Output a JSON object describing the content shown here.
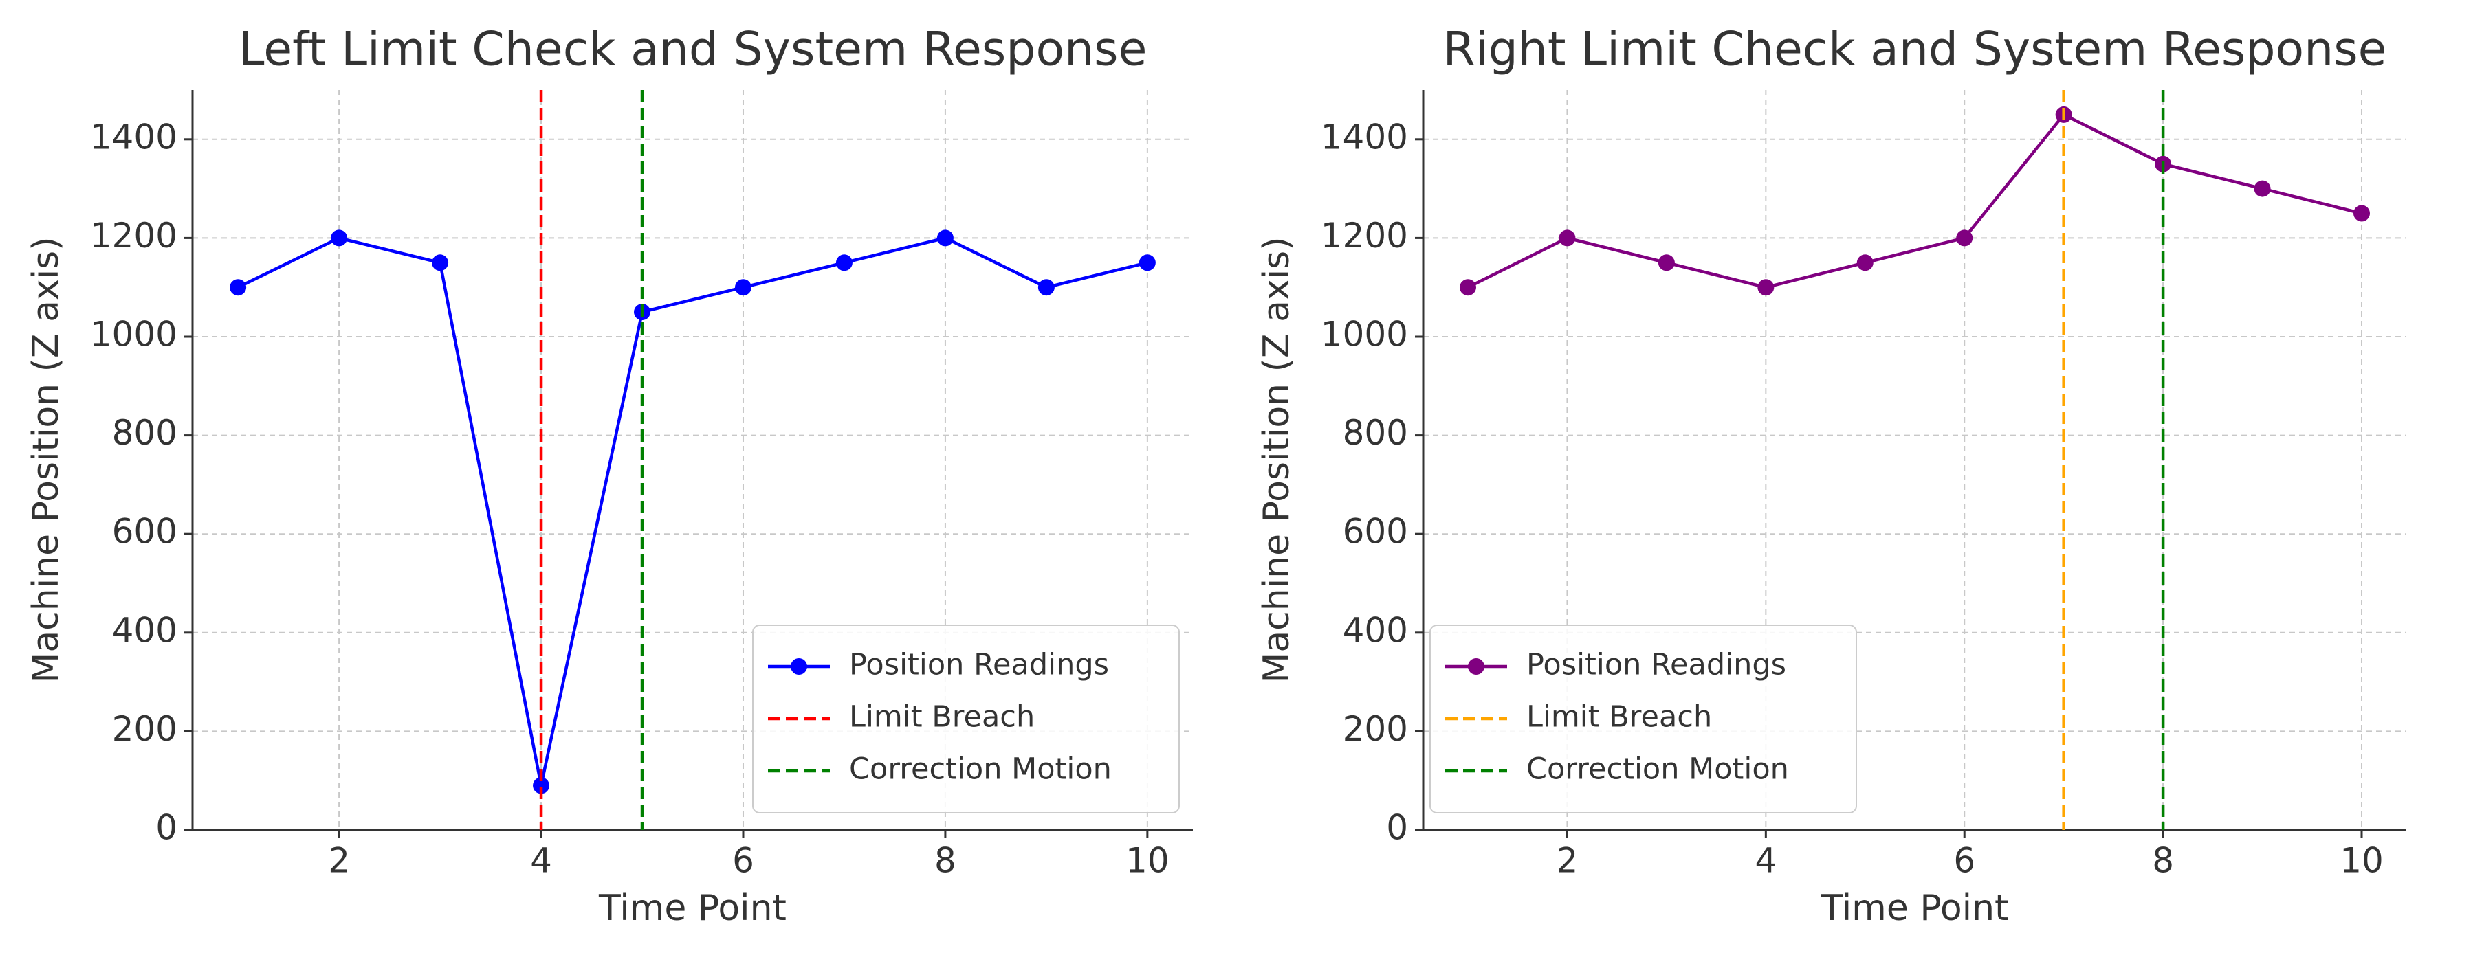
{
  "chart_data": [
    {
      "type": "line",
      "title": "Left Limit Check and System Response",
      "x_label": "Time Point",
      "y_label": "Machine Position (Z axis)",
      "x": [
        1,
        2,
        3,
        4,
        5,
        6,
        7,
        8,
        9,
        10
      ],
      "series": [
        {
          "name": "Position Readings",
          "color": "#0000ff",
          "values": [
            1100,
            1200,
            1150,
            90,
            1050,
            1100,
            1150,
            1200,
            1100,
            1150
          ]
        }
      ],
      "vlines": [
        {
          "name": "Limit Breach",
          "x": 4,
          "color": "#ff0000"
        },
        {
          "name": "Correction Motion",
          "x": 5,
          "color": "#008000"
        }
      ],
      "xlim": [
        0.55,
        10.45
      ],
      "ylim": [
        0,
        1500
      ],
      "xticks": [
        2,
        4,
        6,
        8,
        10
      ],
      "yticks": [
        0,
        200,
        400,
        600,
        800,
        1000,
        1200,
        1400
      ],
      "grid": true,
      "legend": "lower right"
    },
    {
      "type": "line",
      "title": "Right Limit Check and System Response",
      "x_label": "Time Point",
      "y_label": "Machine Position (Z axis)",
      "x": [
        1,
        2,
        3,
        4,
        5,
        6,
        7,
        8,
        9,
        10
      ],
      "series": [
        {
          "name": "Position Readings",
          "color": "#800080",
          "values": [
            1100,
            1200,
            1150,
            1100,
            1150,
            1200,
            1450,
            1350,
            1300,
            1250
          ]
        }
      ],
      "vlines": [
        {
          "name": "Limit Breach",
          "x": 7,
          "color": "#ffa500"
        },
        {
          "name": "Correction Motion",
          "x": 8,
          "color": "#008000"
        }
      ],
      "xlim": [
        0.55,
        10.45
      ],
      "ylim": [
        0,
        1500
      ],
      "xticks": [
        2,
        4,
        6,
        8,
        10
      ],
      "yticks": [
        0,
        200,
        400,
        600,
        800,
        1000,
        1200,
        1400
      ],
      "grid": true,
      "legend": "lower left"
    }
  ]
}
